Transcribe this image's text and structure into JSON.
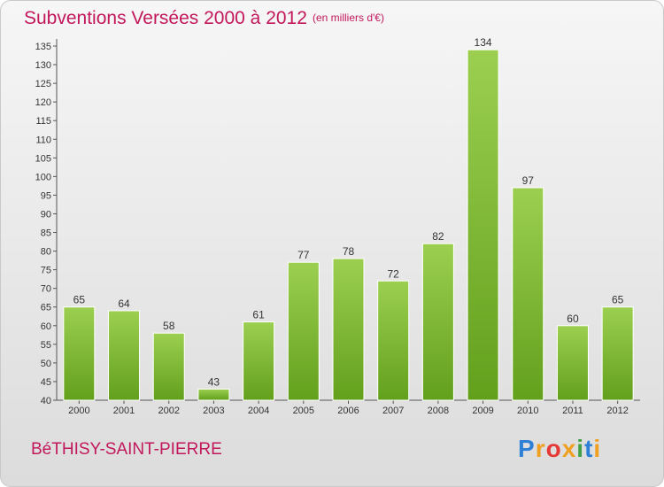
{
  "header": {
    "title": "Subventions Versées 2000 à 2012",
    "unit": "(en milliers d'€)"
  },
  "footer": {
    "commune": "BéTHISY-SAINT-PIERRE",
    "logo_letters": [
      "P",
      "r",
      "o",
      "x",
      "i",
      "t",
      "i"
    ],
    "logo_colors": [
      "#2e7fd6",
      "#f0a020",
      "#e53935",
      "#f0a020",
      "#43a047",
      "#2e7fd6",
      "#f0a020"
    ]
  },
  "chart_data": {
    "type": "bar",
    "categories": [
      "2000",
      "2001",
      "2002",
      "2003",
      "2004",
      "2005",
      "2006",
      "2007",
      "2008",
      "2009",
      "2010",
      "2011",
      "2012"
    ],
    "values": [
      65,
      64,
      58,
      43,
      61,
      77,
      78,
      72,
      82,
      134,
      97,
      60,
      65
    ],
    "title": "Subventions Versées 2000 à 2012",
    "xlabel": "",
    "ylabel": "",
    "ylim": [
      40,
      135
    ],
    "yticks": [
      40,
      45,
      50,
      55,
      60,
      65,
      70,
      75,
      80,
      85,
      90,
      95,
      100,
      105,
      110,
      115,
      120,
      125,
      130,
      135
    ],
    "grid": false,
    "data_labels": true,
    "bar_color_top": "#9ccf50",
    "bar_color_bottom": "#62a01c"
  }
}
